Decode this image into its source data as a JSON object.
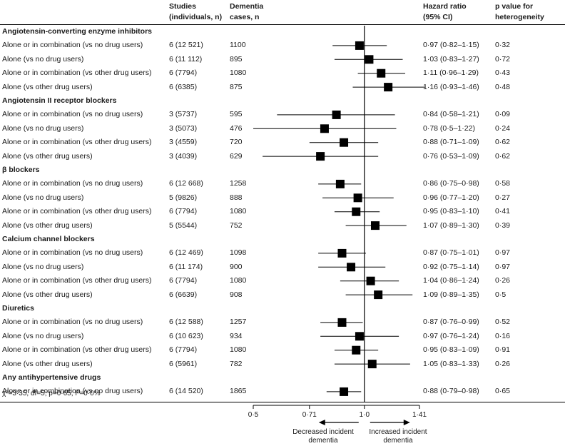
{
  "header": {
    "studies": "Studies\n(individuals, n)",
    "cases": "Dementia\ncases, n",
    "hr": "Hazard ratio\n(95% CI)",
    "pval": "p value for\nheterogeneity"
  },
  "footnote": "χ²=3·35, df=5; p=0·65, I²=0·0%",
  "legend": {
    "left": "Decreased incident\ndementia",
    "right": "Increased incident\ndementia"
  },
  "chart_data": {
    "type": "forest",
    "xscale": "log",
    "xlim": [
      0.5,
      1.41
    ],
    "xticks": [
      0.5,
      0.71,
      1.0,
      1.41
    ],
    "xtick_labels": [
      "0·5",
      "0·71",
      "1·0",
      "1·41"
    ],
    "reference_line": 1.0,
    "groups": [
      {
        "name": "Angiotensin-converting enzyme inhibitors",
        "rows": [
          {
            "label": "Alone or in combination (vs no drug users)",
            "studies": "6 (12 521)",
            "cases": "1100",
            "hr": 0.97,
            "lo": 0.82,
            "hi": 1.15,
            "hr_text": "0·97 (0·82–1·15)",
            "p": "0·32"
          },
          {
            "label": "Alone (vs no drug users)",
            "studies": "6 (11 112)",
            "cases": "895",
            "hr": 1.03,
            "lo": 0.83,
            "hi": 1.27,
            "hr_text": "1·03 (0·83–1·27)",
            "p": "0·72"
          },
          {
            "label": "Alone or in combination (vs other drug users)",
            "studies": "6 (7794)",
            "cases": "1080",
            "hr": 1.11,
            "lo": 0.96,
            "hi": 1.29,
            "hr_text": "1·11 (0·96–1·29)",
            "p": "0·43"
          },
          {
            "label": "Alone (vs other drug users)",
            "studies": "6 (6385)",
            "cases": "875",
            "hr": 1.16,
            "lo": 0.93,
            "hi": 1.46,
            "hr_text": "1·16 (0·93–1·46)",
            "p": "0·48"
          }
        ]
      },
      {
        "name": "Angiotensin II receptor blockers",
        "rows": [
          {
            "label": "Alone or in combination (vs no drug users)",
            "studies": "3 (5737)",
            "cases": "595",
            "hr": 0.84,
            "lo": 0.58,
            "hi": 1.21,
            "hr_text": "0·84 (0·58–1·21)",
            "p": "0·09"
          },
          {
            "label": "Alone (vs no drug users)",
            "studies": "3 (5073)",
            "cases": "476",
            "hr": 0.78,
            "lo": 0.5,
            "hi": 1.22,
            "hr_text": "0·78 (0·5–1·22)",
            "p": "0·24"
          },
          {
            "label": "Alone or in combination (vs other drug users)",
            "studies": "3 (4559)",
            "cases": "720",
            "hr": 0.88,
            "lo": 0.71,
            "hi": 1.09,
            "hr_text": "0·88 (0·71–1·09)",
            "p": "0·62"
          },
          {
            "label": "Alone (vs other drug users)",
            "studies": "3 (4039)",
            "cases": "629",
            "hr": 0.76,
            "lo": 0.53,
            "hi": 1.09,
            "hr_text": "0·76 (0·53–1·09)",
            "p": "0·62"
          }
        ]
      },
      {
        "name": "β blockers",
        "rows": [
          {
            "label": "Alone or in combination (vs no drug users)",
            "studies": "6 (12 668)",
            "cases": "1258",
            "hr": 0.86,
            "lo": 0.75,
            "hi": 0.98,
            "hr_text": "0·86 (0·75–0·98)",
            "p": "0·58"
          },
          {
            "label": "Alone (vs no drug users)",
            "studies": "5 (9826)",
            "cases": "888",
            "hr": 0.96,
            "lo": 0.77,
            "hi": 1.2,
            "hr_text": "0·96 (0·77–1·20)",
            "p": "0·27"
          },
          {
            "label": "Alone or in combination (vs other drug users)",
            "studies": "6 (7794)",
            "cases": "1080",
            "hr": 0.95,
            "lo": 0.83,
            "hi": 1.1,
            "hr_text": "0·95 (0·83–1·10)",
            "p": "0·41"
          },
          {
            "label": "Alone (vs other drug users)",
            "studies": "5 (5544)",
            "cases": "752",
            "hr": 1.07,
            "lo": 0.89,
            "hi": 1.3,
            "hr_text": "1·07 (0·89–1·30)",
            "p": "0·39"
          }
        ]
      },
      {
        "name": "Calcium channel blockers",
        "rows": [
          {
            "label": "Alone or in combination (vs no drug users)",
            "studies": "6 (12 469)",
            "cases": "1098",
            "hr": 0.87,
            "lo": 0.75,
            "hi": 1.01,
            "hr_text": "0·87 (0·75–1·01)",
            "p": "0·97"
          },
          {
            "label": "Alone (vs no drug users)",
            "studies": "6 (11 174)",
            "cases": "900",
            "hr": 0.92,
            "lo": 0.75,
            "hi": 1.14,
            "hr_text": "0·92 (0·75–1·14)",
            "p": "0·97"
          },
          {
            "label": "Alone or in combination (vs other drug users)",
            "studies": "6 (7794)",
            "cases": "1080",
            "hr": 1.04,
            "lo": 0.86,
            "hi": 1.24,
            "hr_text": "1·04 (0·86–1·24)",
            "p": "0·26"
          },
          {
            "label": "Alone (vs other drug users)",
            "studies": "6 (6639)",
            "cases": "908",
            "hr": 1.09,
            "lo": 0.89,
            "hi": 1.35,
            "hr_text": "1·09 (0·89–1·35)",
            "p": "0·5"
          }
        ]
      },
      {
        "name": "Diuretics",
        "rows": [
          {
            "label": "Alone or in combination (vs no drug users)",
            "studies": "6 (12 588)",
            "cases": "1257",
            "hr": 0.87,
            "lo": 0.76,
            "hi": 0.99,
            "hr_text": "0·87 (0·76–0·99)",
            "p": "0·52"
          },
          {
            "label": "Alone (vs no drug users)",
            "studies": "6 (10 623)",
            "cases": "934",
            "hr": 0.97,
            "lo": 0.76,
            "hi": 1.24,
            "hr_text": "0·97 (0·76–1·24)",
            "p": "0·16"
          },
          {
            "label": "Alone or in combination (vs other drug users)",
            "studies": "6 (7794)",
            "cases": "1080",
            "hr": 0.95,
            "lo": 0.83,
            "hi": 1.09,
            "hr_text": "0·95 (0·83–1·09)",
            "p": "0·91"
          },
          {
            "label": "Alone (vs other drug users)",
            "studies": "6 (5961)",
            "cases": "782",
            "hr": 1.05,
            "lo": 0.83,
            "hi": 1.33,
            "hr_text": "1·05 (0·83–1·33)",
            "p": "0·26"
          }
        ]
      },
      {
        "name": "Any antihypertensive drugs",
        "rows": [
          {
            "label": "Alone or in combination (vs no drug users)",
            "studies": "6 (14 520)",
            "cases": "1865",
            "hr": 0.88,
            "lo": 0.79,
            "hi": 0.98,
            "hr_text": "0·88 (0·79–0·98)",
            "p": "0·65"
          }
        ]
      }
    ]
  }
}
